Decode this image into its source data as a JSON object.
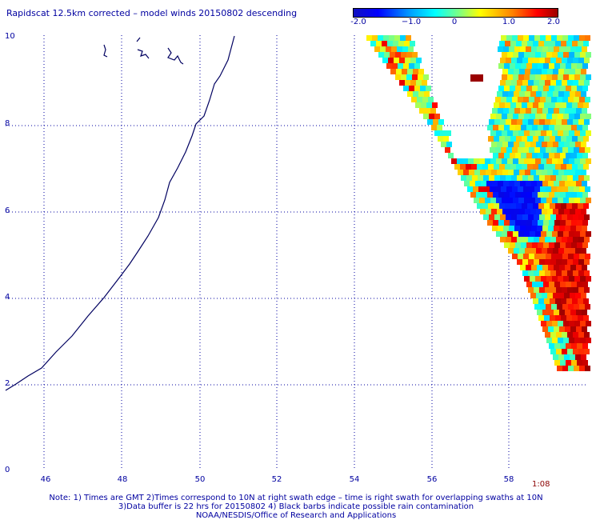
{
  "title": "Rapidscat 12.5km corrected – model winds 20150802 descending",
  "colorbar": {
    "ticks": [
      "-2.0",
      "−1.0",
      "0",
      "1.0",
      "2.0"
    ],
    "values": [
      -2.0,
      -1.0,
      0,
      1.0,
      2.0
    ]
  },
  "y_axis": {
    "ticks": [
      "0",
      "2",
      "4",
      "6",
      "8",
      "10"
    ]
  },
  "x_axis": {
    "ticks": [
      "46",
      "48",
      "50",
      "52",
      "54",
      "56",
      "58"
    ]
  },
  "timestamp": "1:08",
  "notes": [
    "Note: 1) Times are GMT 2)Times correspond to 10N at right swath edge – time is right swath for overlapping swaths at 10N",
    "3)Data buffer is 22 hrs for 20150802 4) Black barbs indicate possible rain contamination",
    "NOAA/NESDIS/Office of Research and Applications"
  ]
}
